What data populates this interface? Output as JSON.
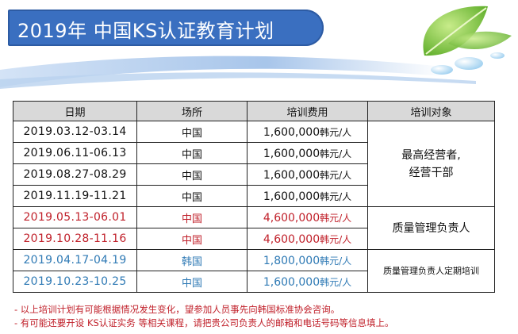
{
  "header": {
    "title": "2019年  中国KS认证教育计划"
  },
  "table": {
    "headers": [
      "日期",
      "场所",
      "培训费用",
      "培训对象"
    ],
    "rows": [
      {
        "date": "2019.03.12-03.14",
        "location": "中国",
        "fee": "1,600,000",
        "unit": "韩元/人"
      },
      {
        "date": "2019.06.11-06.13",
        "location": "中国",
        "fee": "1,600,000",
        "unit": "韩元/人"
      },
      {
        "date": "2019.08.27-08.29",
        "location": "中国",
        "fee": "1,600,000",
        "unit": "韩元/人"
      },
      {
        "date": "2019.11.19-11.21",
        "location": "中国",
        "fee": "1,600,000",
        "unit": "韩元/人"
      },
      {
        "date": "2019.05.13-06.01",
        "location": "中国",
        "fee": "4,600,000",
        "unit": "韩元/人"
      },
      {
        "date": "2019.10.28-11.16",
        "location": "中国",
        "fee": "4,600,000",
        "unit": "韩元/人"
      },
      {
        "date": "2019.04.17-04.19",
        "location": "韩国",
        "fee": "1,800,000",
        "unit": "韩元/人"
      },
      {
        "date": "2019.10.23-10.25",
        "location": "中国",
        "fee": "1,600,000",
        "unit": "韩元/人"
      }
    ],
    "targets": {
      "group1_line1": "最高经营者,",
      "group1_line2": "经营干部",
      "group2": "质量管理负责人",
      "group3": "质量管理负责人定期培训"
    }
  },
  "notes": [
    "- 以上培训计划有可能根据情况发生变化，望参加人员事先向韩国标准协会咨询。",
    "- 有可能还要开设 KS认证实务 等相关课程，请把贵公司负责人的邮箱和电话号码等信息填上。"
  ],
  "colors": {
    "banner_blue": "#3a6fc0",
    "red_rows": "#c0202a",
    "blue_rows": "#2f7ab5",
    "leaf_green": "#7cc63a"
  },
  "icons": {
    "decoration": "green-leaf-with-water-drops"
  }
}
